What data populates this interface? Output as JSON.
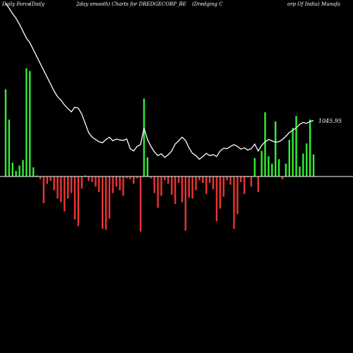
{
  "header": {
    "segments": [
      "Daily Force",
      "(Daily",
      "2day smooth) Charts for DREDGECORP_BE",
      "(Dredging C",
      "orp Of India) Munafa"
    ]
  },
  "chart_data": {
    "type": "bar",
    "title": "",
    "xlabel": "",
    "ylabel": "",
    "colors": {
      "background": "#000000",
      "positive": "#33ee33",
      "negative": "#ee3333",
      "line": "#ffffff",
      "zero_line": "#ffffff"
    },
    "force_bars": [
      95,
      62,
      15,
      6,
      12,
      18,
      118,
      115,
      10,
      1,
      -3,
      -29,
      -8,
      -5,
      -15,
      -24,
      -28,
      -38,
      -24,
      -18,
      -47,
      -54,
      -13,
      1,
      -5,
      -6,
      -11,
      -17,
      -57,
      -58,
      -46,
      -18,
      -11,
      -15,
      -21,
      -2,
      -3,
      -8,
      -2,
      -60,
      85,
      21,
      -2,
      -18,
      -34,
      -21,
      -4,
      -8,
      -20,
      -30,
      -7,
      -28,
      -59,
      -23,
      -24,
      -15,
      -4,
      -7,
      -19,
      -7,
      -14,
      -49,
      -35,
      -22,
      -4,
      -9,
      -57,
      -41,
      -6,
      -19,
      -1,
      -11,
      20,
      -17,
      28,
      70,
      22,
      14,
      60,
      19,
      -3,
      14,
      40,
      53,
      66,
      11,
      25,
      36,
      62,
      24
    ],
    "price_line": [
      1300,
      1290,
      1278,
      1268,
      1255,
      1240,
      1225,
      1215,
      1200,
      1185,
      1170,
      1155,
      1140,
      1125,
      1110,
      1098,
      1090,
      1080,
      1072,
      1065,
      1075,
      1073,
      1060,
      1040,
      1020,
      1010,
      1005,
      1000,
      998,
      1005,
      1010,
      1002,
      1006,
      1004,
      1003,
      1006,
      985,
      980,
      990,
      994,
      1030,
      1005,
      990,
      978,
      970,
      974,
      966,
      972,
      980,
      995,
      1002,
      1010,
      1003,
      987,
      975,
      970,
      962,
      968,
      975,
      970,
      972,
      968,
      980,
      986,
      985,
      990,
      994,
      990,
      984,
      987,
      982,
      985,
      995,
      980,
      992,
      1000,
      1005,
      1002,
      999,
      1000,
      1005,
      1012,
      1020,
      1025,
      1030,
      1038,
      1042,
      1040,
      1044,
      1045.95
    ],
    "last_price_label": "1045.95"
  }
}
